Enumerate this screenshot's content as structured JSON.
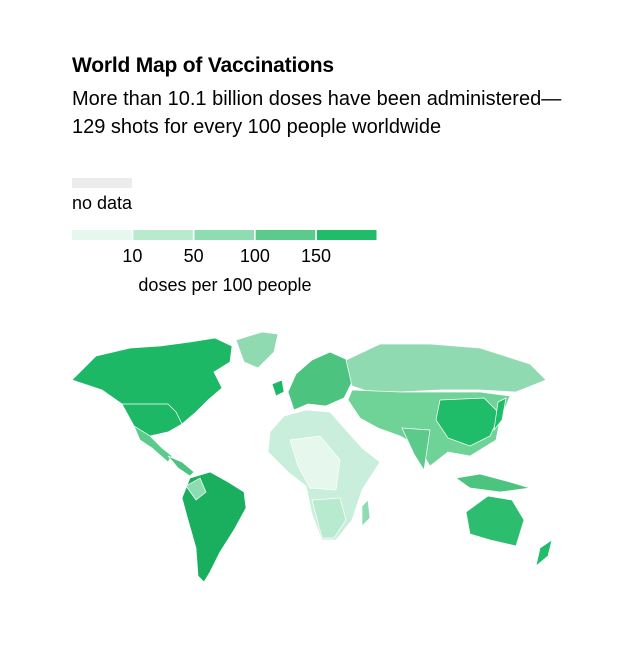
{
  "header": {
    "title": "World Map of Vaccinations",
    "subtitle": "More than 10.1 billion doses have been administered—129 shots for every 100 people worldwide"
  },
  "legend": {
    "no_data_label": "no data",
    "colors": [
      "#e6f7ee",
      "#b8ead0",
      "#8edcb2",
      "#5bcb8c",
      "#1fbd6a"
    ],
    "ticks": [
      10,
      50,
      100,
      150
    ],
    "unit_label": "doses per 100 people"
  }
}
